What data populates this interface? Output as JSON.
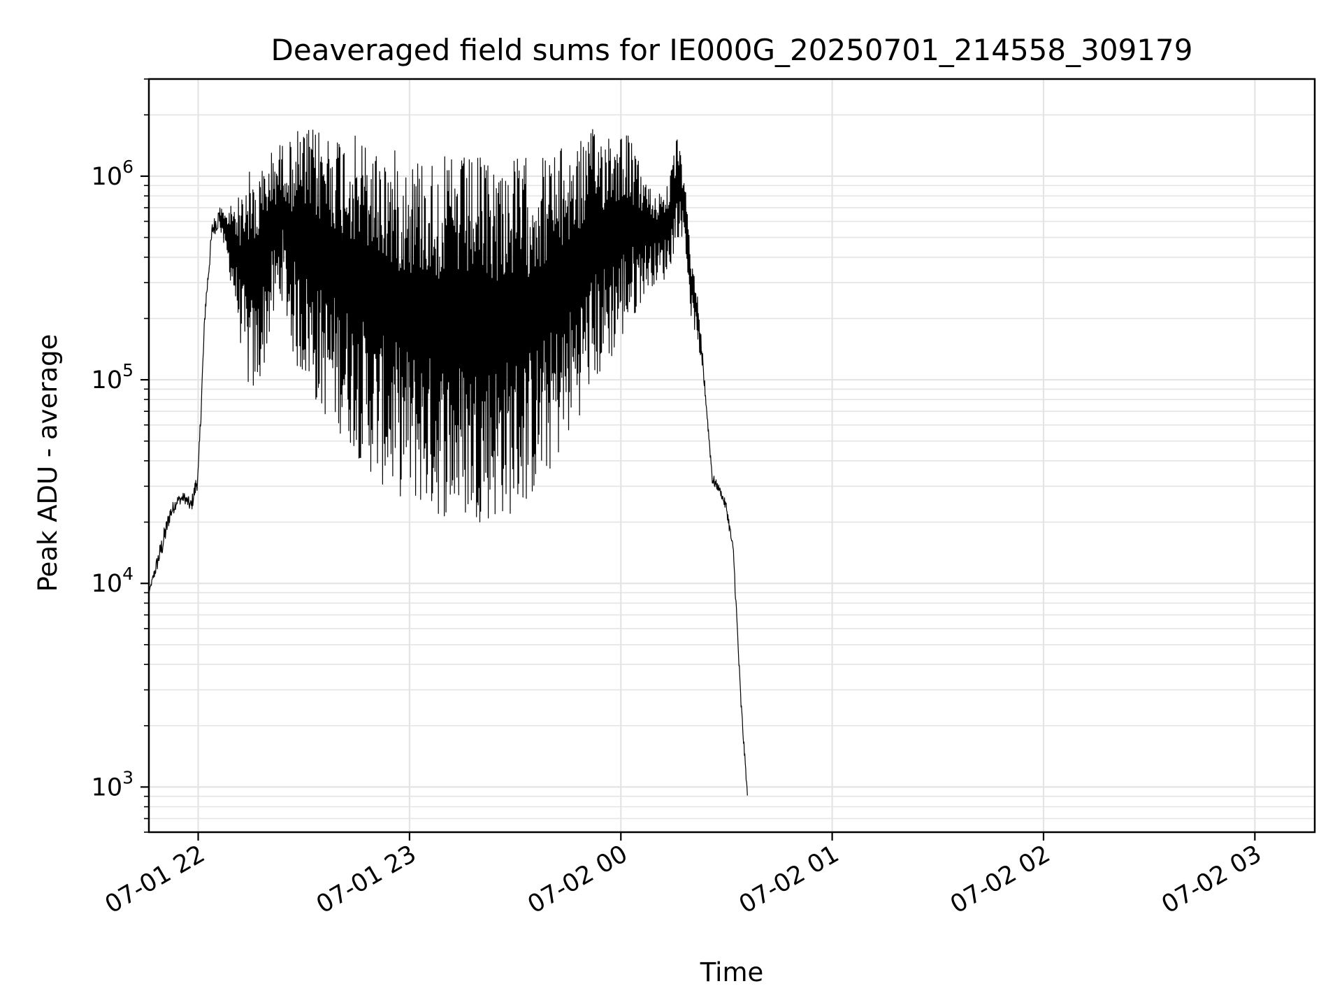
{
  "chart_data": {
    "type": "line",
    "title": "Deaveraged field sums for IE000G_20250701_214558_309179",
    "xlabel": "Time",
    "ylabel": "Peak ADU - average",
    "yscale": "log",
    "ylim": [
      600,
      3000000
    ],
    "xlim": [
      "2025-07-01 21:46",
      "2025-07-02 03:17"
    ],
    "x_ticks": [
      {
        "at": "2025-07-01 22:00",
        "label": "07-01 22"
      },
      {
        "at": "2025-07-01 23:00",
        "label": "07-01 23"
      },
      {
        "at": "2025-07-02 00:00",
        "label": "07-02 00"
      },
      {
        "at": "2025-07-02 01:00",
        "label": "07-02 01"
      },
      {
        "at": "2025-07-02 02:00",
        "label": "07-02 02"
      },
      {
        "at": "2025-07-02 03:00",
        "label": "07-02 03"
      }
    ],
    "y_ticks": [
      {
        "value": 1000,
        "base": "10",
        "exp": "3"
      },
      {
        "value": 10000,
        "base": "10",
        "exp": "4"
      },
      {
        "value": 100000,
        "base": "10",
        "exp": "5"
      },
      {
        "value": 1000000,
        "base": "10",
        "exp": "6"
      }
    ],
    "grid": true,
    "line_color": "#000000",
    "grid_color": "#e4e4e4",
    "series": [
      {
        "x_start": "2025-07-01 21:46",
        "step_minutes": 2,
        "envelope_high": [
          9000,
          13000,
          18000,
          24000,
          27000,
          28000,
          26000,
          38000,
          250000,
          600000,
          720000,
          650000,
          800000,
          800000,
          1100000,
          1000000,
          1100000,
          1300000,
          1400000,
          1500000,
          1500000,
          1700000,
          1700000,
          1700000,
          1750000,
          1750000,
          1750000,
          1700000,
          1650000,
          1600000,
          1550000,
          1500000,
          1450000,
          1400000,
          1350000,
          1350000,
          1300000,
          1300000,
          1300000,
          1300000,
          1250000,
          1250000,
          1250000,
          1250000,
          1250000,
          1250000,
          1250000,
          1250000,
          1250000,
          1250000,
          1250000,
          1250000,
          1250000,
          1250000,
          1250000,
          1300000,
          1300000,
          1300000,
          1350000,
          1400000,
          1450000,
          1500000,
          1600000,
          1700000,
          1750000,
          1800000,
          1800000,
          1750000,
          1700000,
          1300000,
          1100000,
          900000,
          850000,
          900000,
          1000000,
          1600000,
          1000000,
          400000,
          250000,
          90000,
          35000,
          30000,
          25000,
          15000,
          3000,
          900
        ],
        "envelope_low": [
          9000,
          11000,
          14000,
          20000,
          24000,
          25000,
          22000,
          30000,
          200000,
          500000,
          550000,
          400000,
          250000,
          150000,
          90000,
          80000,
          100000,
          150000,
          200000,
          250000,
          150000,
          110000,
          100000,
          90000,
          70000,
          65000,
          60000,
          55000,
          50000,
          45000,
          40000,
          36000,
          32000,
          30000,
          28000,
          27000,
          26000,
          25000,
          24000,
          23000,
          22000,
          21000,
          21000,
          20000,
          20000,
          20000,
          20000,
          20000,
          20000,
          20000,
          21000,
          21000,
          22000,
          23000,
          25000,
          27000,
          30000,
          35000,
          40000,
          45000,
          55000,
          65000,
          80000,
          90000,
          100000,
          110000,
          130000,
          150000,
          170000,
          200000,
          250000,
          280000,
          300000,
          300000,
          350000,
          500000,
          500000,
          200000,
          150000,
          80000,
          30000,
          28000,
          22000,
          13000,
          2500,
          850
        ]
      }
    ]
  }
}
